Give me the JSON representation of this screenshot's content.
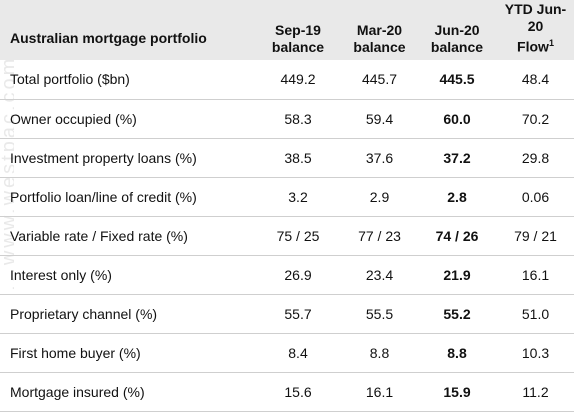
{
  "table": {
    "header": {
      "label": "Australian mortgage portfolio",
      "columns": [
        {
          "line1": "Sep-19",
          "line2": "balance",
          "sup": ""
        },
        {
          "line1": "Mar-20",
          "line2": "balance",
          "sup": ""
        },
        {
          "line1": "Jun-20",
          "line2": "balance",
          "sup": ""
        },
        {
          "line1": "YTD Jun-20",
          "line2": "Flow",
          "sup": "1"
        }
      ]
    },
    "rows": [
      {
        "label": "Total portfolio ($bn)",
        "values": [
          "449.2",
          "445.7",
          "445.5",
          "48.4"
        ]
      },
      {
        "label": "Owner occupied (%)",
        "values": [
          "58.3",
          "59.4",
          "60.0",
          "70.2"
        ]
      },
      {
        "label": "Investment property loans (%)",
        "values": [
          "38.5",
          "37.6",
          "37.2",
          "29.8"
        ]
      },
      {
        "label": "Portfolio loan/line of credit (%)",
        "values": [
          "3.2",
          "2.9",
          "2.8",
          "0.06"
        ]
      },
      {
        "label": "Variable rate / Fixed rate (%)",
        "values": [
          "75 / 25",
          "77 / 23",
          "74 / 26",
          "79 / 21"
        ]
      },
      {
        "label": "Interest only (%)",
        "values": [
          "26.9",
          "23.4",
          "21.9",
          "16.1"
        ]
      },
      {
        "label": "Proprietary channel (%)",
        "values": [
          "55.7",
          "55.5",
          "55.2",
          "51.0"
        ]
      },
      {
        "label": "First home buyer (%)",
        "values": [
          "8.4",
          "8.8",
          "8.8",
          "10.3"
        ]
      },
      {
        "label": "Mortgage insured (%)",
        "values": [
          "15.6",
          "16.1",
          "15.9",
          "11.2"
        ]
      }
    ]
  },
  "watermark": "...www.westpac.com..."
}
